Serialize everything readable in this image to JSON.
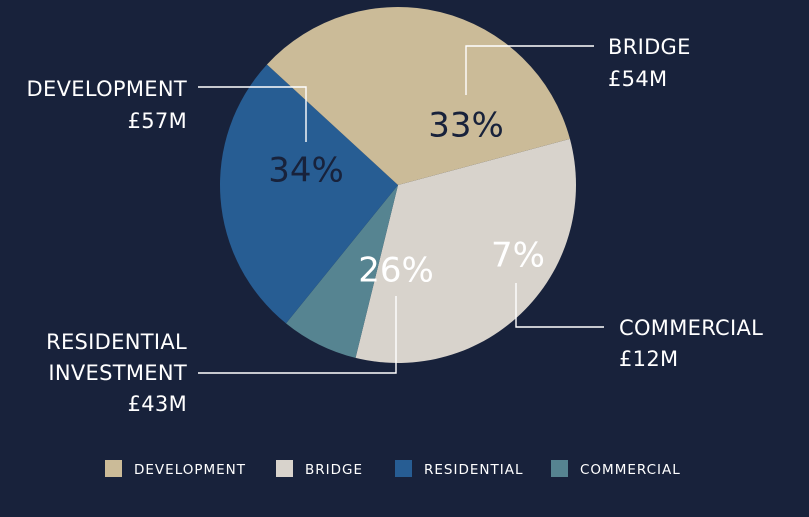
{
  "chart_data": {
    "type": "pie",
    "title": "",
    "start_angle_deg": -15,
    "slices": [
      {
        "key": "bridge",
        "label": "33%",
        "value": 33,
        "color": "#d8d3cc",
        "label_color": "#18223b",
        "callout": [
          "BRIDGE",
          "£54M"
        ],
        "amount": "£54M"
      },
      {
        "key": "commercial",
        "label": "7%",
        "value": 7,
        "color": "#568491",
        "label_color": "#ffffff",
        "callout": [
          "COMMERCIAL",
          "£12M"
        ],
        "amount": "£12M"
      },
      {
        "key": "residential",
        "label": "26%",
        "value": 26,
        "color": "#275d93",
        "label_color": "#ffffff",
        "callout": [
          "RESIDENTIAL",
          "INVESTMENT",
          "£43M"
        ],
        "amount": "£43M"
      },
      {
        "key": "development",
        "label": "34%",
        "value": 34,
        "color": "#cbbb98",
        "label_color": "#18223b",
        "callout": [
          "DEVELOPMENT",
          "£57M"
        ],
        "amount": "£57M"
      }
    ],
    "legend": [
      {
        "label": "DEVELOPMENT",
        "color": "#cbbb98"
      },
      {
        "label": "BRIDGE",
        "color": "#d8d3cc"
      },
      {
        "label": "RESIDENTIAL",
        "color": "#275d93"
      },
      {
        "label": "COMMERCIAL",
        "color": "#568491"
      }
    ],
    "legend_position": "bottom"
  },
  "colors": {
    "background": "#18223b",
    "leader_line": "#ffffff"
  }
}
